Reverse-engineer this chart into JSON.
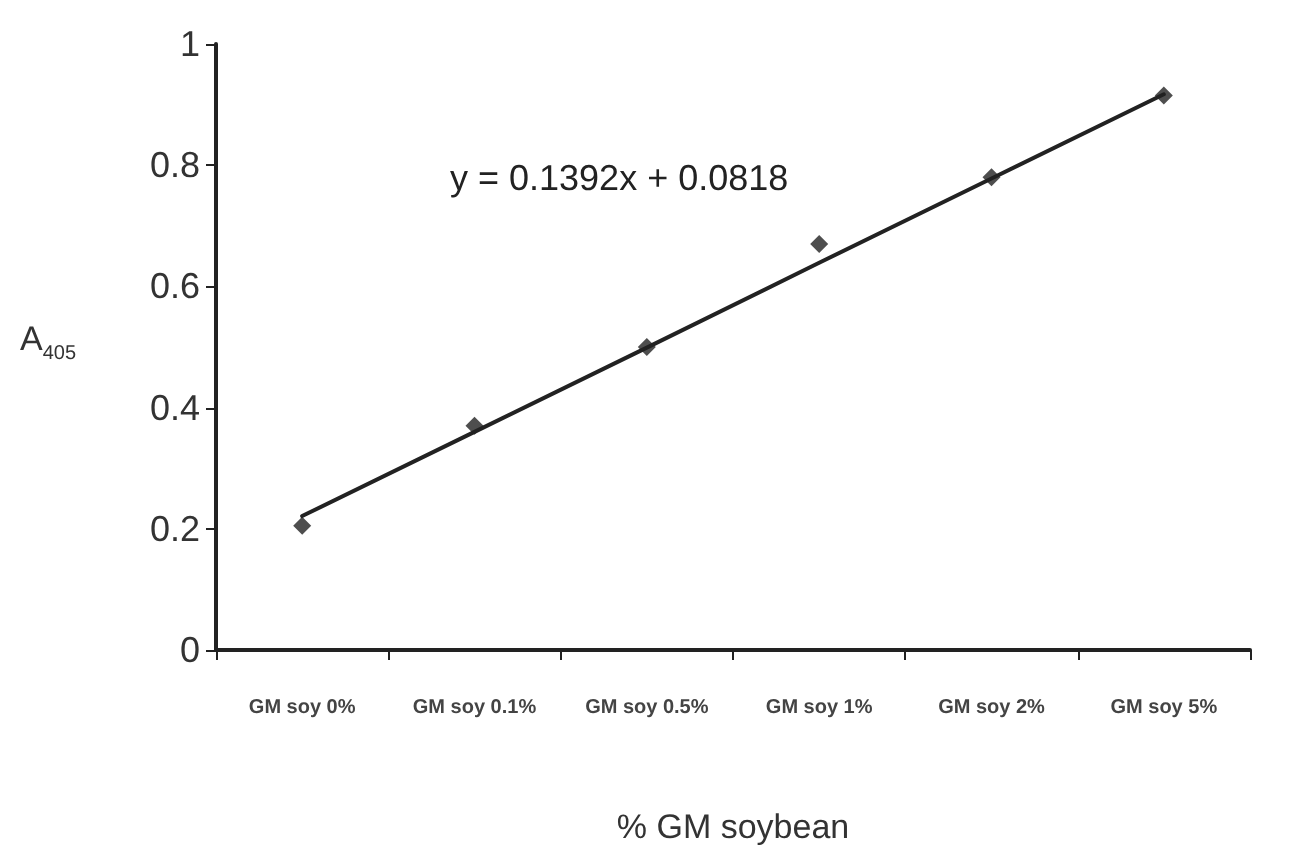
{
  "chart_data": {
    "type": "scatter",
    "xlabel": "% GM soybean",
    "ylabel": "A$_{405}$",
    "categories": [
      "GM soy 0%",
      "GM soy 0.1%",
      "GM soy 0.5%",
      "GM soy 1%",
      "GM soy 2%",
      "GM soy 5%"
    ],
    "series": [
      {
        "color": "#222222",
        "marker": "diamond",
        "values": [
          0.205,
          0.37,
          0.5,
          0.67,
          0.78,
          0.915
        ]
      },
      {
        "type": "line",
        "color": "#222222",
        "marker": "none",
        "line_style": "solid",
        "values": [
          0.221,
          0.36,
          0.499,
          0.639,
          0.778,
          0.917
        ]
      }
    ],
    "annotations": [
      "y = 0.1392x + 0.0818"
    ],
    "ylim": [
      0,
      1
    ],
    "yticks": [
      0,
      0.2,
      0.4,
      0.6,
      0.8,
      1
    ],
    "grid": false
  }
}
